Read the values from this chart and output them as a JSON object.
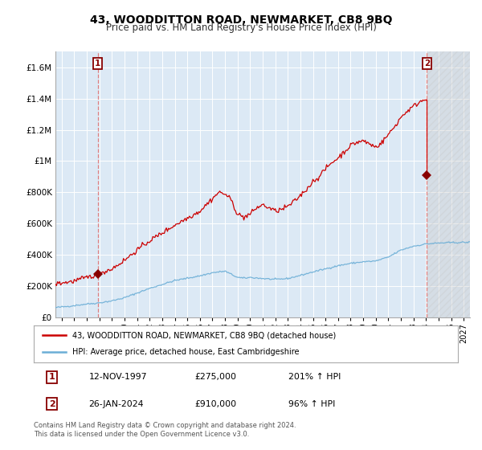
{
  "title": "43, WOODDITTON ROAD, NEWMARKET, CB8 9BQ",
  "subtitle": "Price paid vs. HM Land Registry's House Price Index (HPI)",
  "xlim_start": 1994.5,
  "xlim_end": 2027.5,
  "ylim": [
    0,
    1700000
  ],
  "background_color": "#dce9f5",
  "grid_color": "#ffffff",
  "hpi_color": "#6baed6",
  "price_color": "#cc0000",
  "sale1_date": 1997.87,
  "sale1_price": 275000,
  "sale2_date": 2024.07,
  "sale2_price": 910000,
  "legend_line1": "43, WOODDITTON ROAD, NEWMARKET, CB8 9BQ (detached house)",
  "legend_line2": "HPI: Average price, detached house, East Cambridgeshire",
  "table_row1": [
    "1",
    "12-NOV-1997",
    "£275,000",
    "201% ↑ HPI"
  ],
  "table_row2": [
    "2",
    "26-JAN-2024",
    "£910,000",
    "96% ↑ HPI"
  ],
  "footer": "Contains HM Land Registry data © Crown copyright and database right 2024.\nThis data is licensed under the Open Government Licence v3.0.",
  "future_shade_start": 2024.07,
  "yticks": [
    0,
    200000,
    400000,
    600000,
    800000,
    1000000,
    1200000,
    1400000,
    1600000
  ],
  "ytick_labels": [
    "£0",
    "£200K",
    "£400K",
    "£600K",
    "£800K",
    "£1M",
    "£1.2M",
    "£1.4M",
    "£1.6M"
  ],
  "xticks": [
    1995,
    1996,
    1997,
    1998,
    1999,
    2000,
    2001,
    2002,
    2003,
    2004,
    2005,
    2006,
    2007,
    2008,
    2009,
    2010,
    2011,
    2012,
    2013,
    2014,
    2015,
    2016,
    2017,
    2018,
    2019,
    2020,
    2021,
    2022,
    2023,
    2024,
    2025,
    2026,
    2027
  ],
  "hpi_segments": [
    [
      1994.5,
      62000
    ],
    [
      1995.5,
      70000
    ],
    [
      1997.0,
      85000
    ],
    [
      1997.87,
      91000
    ],
    [
      1999.0,
      105000
    ],
    [
      2000.0,
      125000
    ],
    [
      2001.0,
      155000
    ],
    [
      2002.0,
      185000
    ],
    [
      2003.0,
      210000
    ],
    [
      2004.0,
      235000
    ],
    [
      2005.0,
      250000
    ],
    [
      2006.0,
      265000
    ],
    [
      2007.0,
      285000
    ],
    [
      2008.0,
      295000
    ],
    [
      2008.5,
      275000
    ],
    [
      2009.0,
      255000
    ],
    [
      2009.5,
      250000
    ],
    [
      2010.0,
      255000
    ],
    [
      2011.0,
      248000
    ],
    [
      2012.0,
      242000
    ],
    [
      2013.0,
      248000
    ],
    [
      2014.0,
      268000
    ],
    [
      2015.0,
      290000
    ],
    [
      2016.0,
      310000
    ],
    [
      2017.0,
      330000
    ],
    [
      2018.0,
      345000
    ],
    [
      2019.0,
      355000
    ],
    [
      2020.0,
      360000
    ],
    [
      2021.0,
      385000
    ],
    [
      2022.0,
      430000
    ],
    [
      2023.0,
      455000
    ],
    [
      2024.07,
      470000
    ],
    [
      2025.0,
      475000
    ],
    [
      2026.0,
      478000
    ],
    [
      2027.5,
      480000
    ]
  ],
  "red_segments": [
    [
      1994.5,
      215000
    ],
    [
      1995.5,
      225000
    ],
    [
      1996.0,
      232000
    ],
    [
      1997.0,
      255000
    ],
    [
      1997.87,
      275000
    ],
    [
      1998.0,
      280000
    ],
    [
      1999.0,
      310000
    ],
    [
      2000.0,
      365000
    ],
    [
      2001.0,
      430000
    ],
    [
      2002.0,
      490000
    ],
    [
      2003.0,
      540000
    ],
    [
      2004.0,
      590000
    ],
    [
      2005.0,
      635000
    ],
    [
      2006.0,
      680000
    ],
    [
      2007.0,
      760000
    ],
    [
      2007.5,
      800000
    ],
    [
      2008.0,
      790000
    ],
    [
      2008.5,
      750000
    ],
    [
      2009.0,
      660000
    ],
    [
      2009.5,
      640000
    ],
    [
      2010.0,
      660000
    ],
    [
      2010.5,
      700000
    ],
    [
      2011.0,
      720000
    ],
    [
      2011.5,
      700000
    ],
    [
      2012.0,
      680000
    ],
    [
      2012.5,
      690000
    ],
    [
      2013.0,
      710000
    ],
    [
      2013.5,
      740000
    ],
    [
      2014.0,
      780000
    ],
    [
      2014.5,
      820000
    ],
    [
      2015.0,
      870000
    ],
    [
      2015.5,
      900000
    ],
    [
      2016.0,
      950000
    ],
    [
      2016.5,
      990000
    ],
    [
      2017.0,
      1020000
    ],
    [
      2017.5,
      1060000
    ],
    [
      2018.0,
      1100000
    ],
    [
      2018.5,
      1120000
    ],
    [
      2019.0,
      1130000
    ],
    [
      2019.5,
      1110000
    ],
    [
      2020.0,
      1090000
    ],
    [
      2020.5,
      1120000
    ],
    [
      2021.0,
      1170000
    ],
    [
      2021.5,
      1220000
    ],
    [
      2022.0,
      1280000
    ],
    [
      2022.5,
      1320000
    ],
    [
      2023.0,
      1350000
    ],
    [
      2023.5,
      1380000
    ],
    [
      2024.0,
      1400000
    ],
    [
      2024.07,
      1400000
    ]
  ]
}
